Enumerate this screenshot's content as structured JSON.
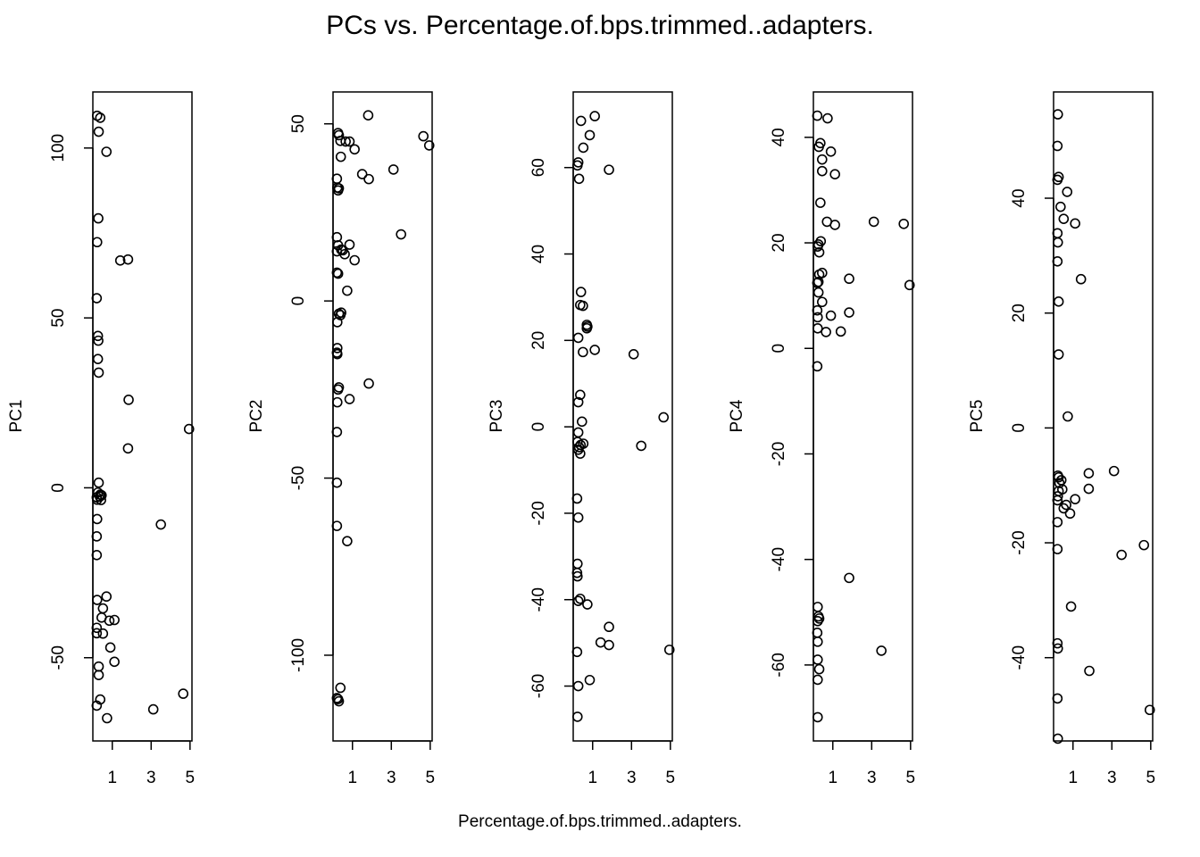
{
  "figure": {
    "title": "PCs vs. Percentage.of.bps.trimmed..adapters.",
    "xlabel": "Percentage.of.bps.trimmed..adapters."
  },
  "chart_data": [
    {
      "type": "scatter",
      "ylabel": "PC1",
      "xlim": [
        0,
        5.1
      ],
      "ylim": [
        -74.5,
        116.5
      ],
      "xticks": [
        "1",
        "3",
        "5"
      ],
      "xtick_values": [
        1,
        3,
        5
      ],
      "yticks": [
        "-50",
        "0",
        "50",
        "100"
      ],
      "ytick_values": [
        -50,
        0,
        50,
        100
      ],
      "points": [
        [
          0.22,
          109.5
        ],
        [
          0.38,
          108.9
        ],
        [
          0.3,
          104.8
        ],
        [
          0.7,
          98.9
        ],
        [
          0.28,
          79.3
        ],
        [
          0.22,
          72.3
        ],
        [
          1.41,
          66.9
        ],
        [
          1.81,
          67.2
        ],
        [
          0.2,
          55.8
        ],
        [
          0.26,
          44.7
        ],
        [
          0.28,
          43.3
        ],
        [
          0.26,
          37.9
        ],
        [
          0.3,
          33.9
        ],
        [
          1.84,
          25.9
        ],
        [
          1.81,
          11.6
        ],
        [
          4.95,
          17.3
        ],
        [
          0.3,
          1.5
        ],
        [
          0.26,
          -1.4
        ],
        [
          0.38,
          -2
        ],
        [
          0.45,
          -2.2
        ],
        [
          0.36,
          -2.6
        ],
        [
          0.2,
          -2.8
        ],
        [
          0.22,
          -3.5
        ],
        [
          0.42,
          -3.6
        ],
        [
          0.22,
          -9.2
        ],
        [
          0.2,
          -14.3
        ],
        [
          0.2,
          -19.8
        ],
        [
          3.5,
          -10.8
        ],
        [
          0.22,
          -33
        ],
        [
          0.7,
          -32
        ],
        [
          0.52,
          -35.5
        ],
        [
          0.45,
          -38.2
        ],
        [
          0.85,
          -39.1
        ],
        [
          1.11,
          -38.9
        ],
        [
          0.2,
          -41.2
        ],
        [
          0.2,
          -42.8
        ],
        [
          0.52,
          -42.9
        ],
        [
          0.9,
          -47
        ],
        [
          1.11,
          -51.2
        ],
        [
          0.3,
          -52.6
        ],
        [
          0.3,
          -55.1
        ],
        [
          0.38,
          -62.3
        ],
        [
          4.65,
          -60.6
        ],
        [
          0.2,
          -64.1
        ],
        [
          3.11,
          -65.2
        ],
        [
          0.73,
          -67.8
        ]
      ]
    },
    {
      "type": "scatter",
      "ylabel": "PC2",
      "xlim": [
        0,
        5.1
      ],
      "ylim": [
        -124.2,
        59
      ],
      "xticks": [
        "1",
        "3",
        "5"
      ],
      "xtick_values": [
        1,
        3,
        5
      ],
      "yticks": [
        "-100",
        "-50",
        "0",
        "50"
      ],
      "ytick_values": [
        -100,
        -50,
        0,
        50
      ],
      "points": [
        [
          1.81,
          52.4
        ],
        [
          0.26,
          47.4
        ],
        [
          0.3,
          46.8
        ],
        [
          4.65,
          46.5
        ],
        [
          0.38,
          45.2
        ],
        [
          0.65,
          45
        ],
        [
          0.85,
          45
        ],
        [
          4.95,
          43.9
        ],
        [
          1.11,
          42.8
        ],
        [
          0.4,
          40.7
        ],
        [
          3.11,
          37.1
        ],
        [
          1.5,
          35.8
        ],
        [
          0.2,
          34.5
        ],
        [
          1.84,
          34.4
        ],
        [
          0.22,
          32
        ],
        [
          0.3,
          31.8
        ],
        [
          0.26,
          31.2
        ],
        [
          0.2,
          18
        ],
        [
          3.5,
          18.8
        ],
        [
          0.26,
          15.7
        ],
        [
          0.85,
          15.9
        ],
        [
          0.42,
          14.5
        ],
        [
          0.2,
          14
        ],
        [
          0.5,
          14.3
        ],
        [
          0.6,
          13.2
        ],
        [
          1.11,
          11.5
        ],
        [
          0.2,
          8
        ],
        [
          0.26,
          7.7
        ],
        [
          0.73,
          2.9
        ],
        [
          0.42,
          -3.3
        ],
        [
          0.3,
          -3.6
        ],
        [
          0.38,
          -4
        ],
        [
          0.22,
          -6
        ],
        [
          0.22,
          -13.3
        ],
        [
          0.2,
          -14.6
        ],
        [
          0.22,
          -15
        ],
        [
          1.84,
          -23.3
        ],
        [
          0.3,
          -24.4
        ],
        [
          0.26,
          -25
        ],
        [
          0.85,
          -27.7
        ],
        [
          0.22,
          -28.6
        ],
        [
          0.2,
          -37
        ],
        [
          0.2,
          -51.3
        ],
        [
          0.2,
          -63.5
        ],
        [
          0.73,
          -67.8
        ],
        [
          0.38,
          -109.2
        ],
        [
          0.2,
          -112.1
        ],
        [
          0.26,
          -112.4
        ],
        [
          0.3,
          -113
        ]
      ]
    },
    {
      "type": "scatter",
      "ylabel": "PC3",
      "xlim": [
        0,
        5.1
      ],
      "ylim": [
        -72.7,
        77.5
      ],
      "xticks": [
        "1",
        "3",
        "5"
      ],
      "xtick_values": [
        1,
        3,
        5
      ],
      "yticks": [
        "-60",
        "-40",
        "-20",
        "0",
        "20",
        "40",
        "60"
      ],
      "ytick_values": [
        -60,
        -40,
        -20,
        0,
        20,
        40,
        60
      ],
      "points": [
        [
          1.11,
          71.9
        ],
        [
          0.4,
          70.8
        ],
        [
          0.85,
          67.5
        ],
        [
          0.52,
          64.6
        ],
        [
          0.26,
          61.2
        ],
        [
          0.22,
          60.5
        ],
        [
          1.84,
          59.5
        ],
        [
          0.3,
          57.4
        ],
        [
          0.4,
          31.2
        ],
        [
          0.36,
          28.2
        ],
        [
          0.5,
          28
        ],
        [
          0.7,
          23.6
        ],
        [
          0.73,
          23.2
        ],
        [
          0.7,
          22.8
        ],
        [
          0.26,
          20.6
        ],
        [
          1.11,
          17.8
        ],
        [
          0.5,
          17.3
        ],
        [
          3.11,
          16.8
        ],
        [
          0.36,
          7.4
        ],
        [
          0.26,
          5.7
        ],
        [
          4.65,
          2.2
        ],
        [
          0.45,
          1.2
        ],
        [
          0.26,
          -1.3
        ],
        [
          0.52,
          -3.9
        ],
        [
          0.38,
          -4.2
        ],
        [
          0.22,
          -3.5
        ],
        [
          0.3,
          -4.7
        ],
        [
          0.26,
          -5.3
        ],
        [
          3.5,
          -4.4
        ],
        [
          0.36,
          -6.2
        ],
        [
          0.2,
          -16.6
        ],
        [
          0.26,
          -21
        ],
        [
          0.22,
          -31.7
        ],
        [
          0.2,
          -33.8
        ],
        [
          0.22,
          -34.6
        ],
        [
          0.36,
          -39.8
        ],
        [
          0.26,
          -40.3
        ],
        [
          0.73,
          -41.1
        ],
        [
          1.84,
          -46.3
        ],
        [
          1.41,
          -49.9
        ],
        [
          1.84,
          -50.5
        ],
        [
          0.2,
          -52.1
        ],
        [
          4.95,
          -51.6
        ],
        [
          0.85,
          -58.6
        ],
        [
          0.26,
          -60
        ],
        [
          0.22,
          -67.1
        ]
      ]
    },
    {
      "type": "scatter",
      "ylabel": "PC4",
      "xlim": [
        0,
        5.1
      ],
      "ylim": [
        -74.4,
        48.6
      ],
      "xticks": [
        "1",
        "3",
        "5"
      ],
      "xtick_values": [
        1,
        3,
        5
      ],
      "yticks": [
        "-60",
        "-40",
        "-20",
        "0",
        "20",
        "40"
      ],
      "ytick_values": [
        -60,
        -40,
        -20,
        0,
        20,
        40
      ],
      "points": [
        [
          0.2,
          44.1
        ],
        [
          0.73,
          43.6
        ],
        [
          0.36,
          38.9
        ],
        [
          0.28,
          38.2
        ],
        [
          0.9,
          37.3
        ],
        [
          0.45,
          35.8
        ],
        [
          0.45,
          33.6
        ],
        [
          1.11,
          33
        ],
        [
          0.36,
          27.6
        ],
        [
          0.7,
          24
        ],
        [
          3.11,
          24
        ],
        [
          4.65,
          23.6
        ],
        [
          1.11,
          23.4
        ],
        [
          0.38,
          20.3
        ],
        [
          0.26,
          19.7
        ],
        [
          0.22,
          19.3
        ],
        [
          0.3,
          18.2
        ],
        [
          0.45,
          14.3
        ],
        [
          0.3,
          14
        ],
        [
          1.84,
          13.2
        ],
        [
          0.26,
          12.6
        ],
        [
          0.2,
          12.4
        ],
        [
          4.95,
          12
        ],
        [
          0.26,
          10.6
        ],
        [
          0.45,
          8.8
        ],
        [
          0.2,
          7.2
        ],
        [
          1.84,
          6.8
        ],
        [
          0.9,
          6.2
        ],
        [
          0.22,
          5.9
        ],
        [
          0.22,
          3.8
        ],
        [
          0.65,
          3.1
        ],
        [
          1.41,
          3.2
        ],
        [
          0.2,
          -3.4
        ],
        [
          1.84,
          -43.5
        ],
        [
          0.22,
          -49
        ],
        [
          0.26,
          -50.8
        ],
        [
          0.3,
          -51.2
        ],
        [
          0.22,
          -51.7
        ],
        [
          0.2,
          -53.9
        ],
        [
          0.22,
          -55.6
        ],
        [
          3.5,
          -57.3
        ],
        [
          0.22,
          -59
        ],
        [
          0.3,
          -60.8
        ],
        [
          0.22,
          -62.8
        ],
        [
          0.22,
          -69.9
        ]
      ]
    },
    {
      "type": "scatter",
      "ylabel": "PC5",
      "xlim": [
        0,
        5.1
      ],
      "ylim": [
        -54.5,
        58.5
      ],
      "xticks": [
        "1",
        "3",
        "5"
      ],
      "xtick_values": [
        1,
        3,
        5
      ],
      "yticks": [
        "-40",
        "-20",
        "0",
        "20",
        "40"
      ],
      "ytick_values": [
        -40,
        -20,
        0,
        20,
        40
      ],
      "points": [
        [
          0.22,
          54.6
        ],
        [
          0.2,
          49.1
        ],
        [
          0.26,
          43.7
        ],
        [
          0.2,
          43.2
        ],
        [
          0.36,
          38.5
        ],
        [
          0.7,
          41.1
        ],
        [
          0.52,
          36.4
        ],
        [
          1.11,
          35.6
        ],
        [
          0.2,
          33.9
        ],
        [
          0.22,
          32.3
        ],
        [
          1.41,
          25.9
        ],
        [
          0.2,
          29
        ],
        [
          0.26,
          22
        ],
        [
          0.26,
          12.8
        ],
        [
          0.73,
          2
        ],
        [
          0.22,
          -8.3
        ],
        [
          0.26,
          -8.6
        ],
        [
          0.4,
          -9.1
        ],
        [
          0.3,
          -9.6
        ],
        [
          0.45,
          -10.7
        ],
        [
          0.26,
          -11
        ],
        [
          0.22,
          -11.9
        ],
        [
          0.2,
          -12.6
        ],
        [
          1.11,
          -12.4
        ],
        [
          0.65,
          -13.4
        ],
        [
          1.81,
          -7.9
        ],
        [
          3.11,
          -7.5
        ],
        [
          0.52,
          -14
        ],
        [
          0.85,
          -14.9
        ],
        [
          1.81,
          -10.6
        ],
        [
          0.2,
          -16.4
        ],
        [
          0.2,
          -21.1
        ],
        [
          3.5,
          -22.1
        ],
        [
          4.65,
          -20.4
        ],
        [
          0.9,
          -31.1
        ],
        [
          0.2,
          -37.5
        ],
        [
          0.22,
          -38.4
        ],
        [
          1.84,
          -42.3
        ],
        [
          0.2,
          -47.1
        ],
        [
          4.95,
          -49.1
        ],
        [
          0.22,
          -54.1
        ]
      ]
    }
  ]
}
